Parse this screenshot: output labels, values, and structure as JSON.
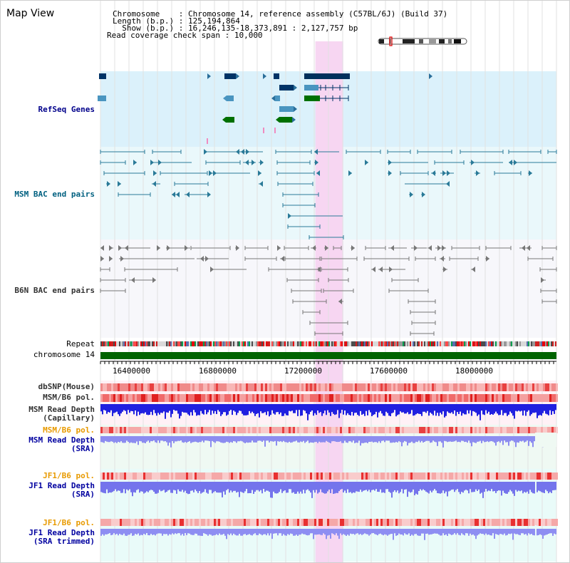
{
  "view_title": "Map View",
  "header": {
    "rows": [
      {
        "label": "Chromosome    ",
        "value": ": Chromosome 14, reference assembly (C57BL/6J) (Build 37)"
      },
      {
        "label": "Length (b.p.) ",
        "value": ": 125,194,864"
      },
      {
        "label": "  Show (b.p.) ",
        "value": ": 16,246,135-18,373,891 : 2,127,757 bp"
      },
      {
        "label": "Read coverage check span ",
        "value": ": 10,000"
      }
    ]
  },
  "tracks": {
    "refseq": {
      "label": "RefSeq Genes",
      "color": "#00008b",
      "bg": "#dbf1fb"
    },
    "msm_bac": {
      "label": "MSM BAC end pairs",
      "color": "#006080",
      "bg": "#eaf8fb"
    },
    "b6n_bac": {
      "label": "B6N BAC end pairs",
      "color": "#333333",
      "bg": "#f7f7fb"
    },
    "repeat": {
      "label": "Repeat"
    },
    "chromosome": {
      "label": "chromosome 14",
      "color": "#006400"
    },
    "dbsnp": {
      "label": "dbSNP(Mouse)",
      "color": "#333333"
    },
    "msm_b6_pol": {
      "label": "MSM/B6 pol.",
      "color": "#333333"
    },
    "msm_depth_cap": {
      "label": "MSM Read Depth\n(Capillary)",
      "color": "#333333"
    },
    "msm_b6_pol_sra": {
      "label": "MSM/B6 pol.",
      "color": "#e89a00"
    },
    "msm_depth_sra": {
      "label": "MSM Read Depth\n(SRA)",
      "color": "#0000a0"
    },
    "jf1_b6_pol": {
      "label": "JF1/B6 pol.",
      "color": "#e89a00"
    },
    "jf1_depth_sra": {
      "label": "JF1 Read Depth\n(SRA)",
      "color": "#0000a0"
    },
    "jf1_b6_pol_trim": {
      "label": "JF1/B6 pol.",
      "color": "#e89a00"
    },
    "jf1_depth_trim": {
      "label": "JF1 Read Depth\n(SRA trimmed)",
      "color": "#0000a0"
    }
  },
  "axis": {
    "positions": [
      "16400000",
      "16800000",
      "17200000",
      "17600000",
      "18000000"
    ]
  },
  "highlight": {
    "start_bp": 17250000,
    "end_bp": 17380000,
    "color": "#f7d6f2"
  }
}
